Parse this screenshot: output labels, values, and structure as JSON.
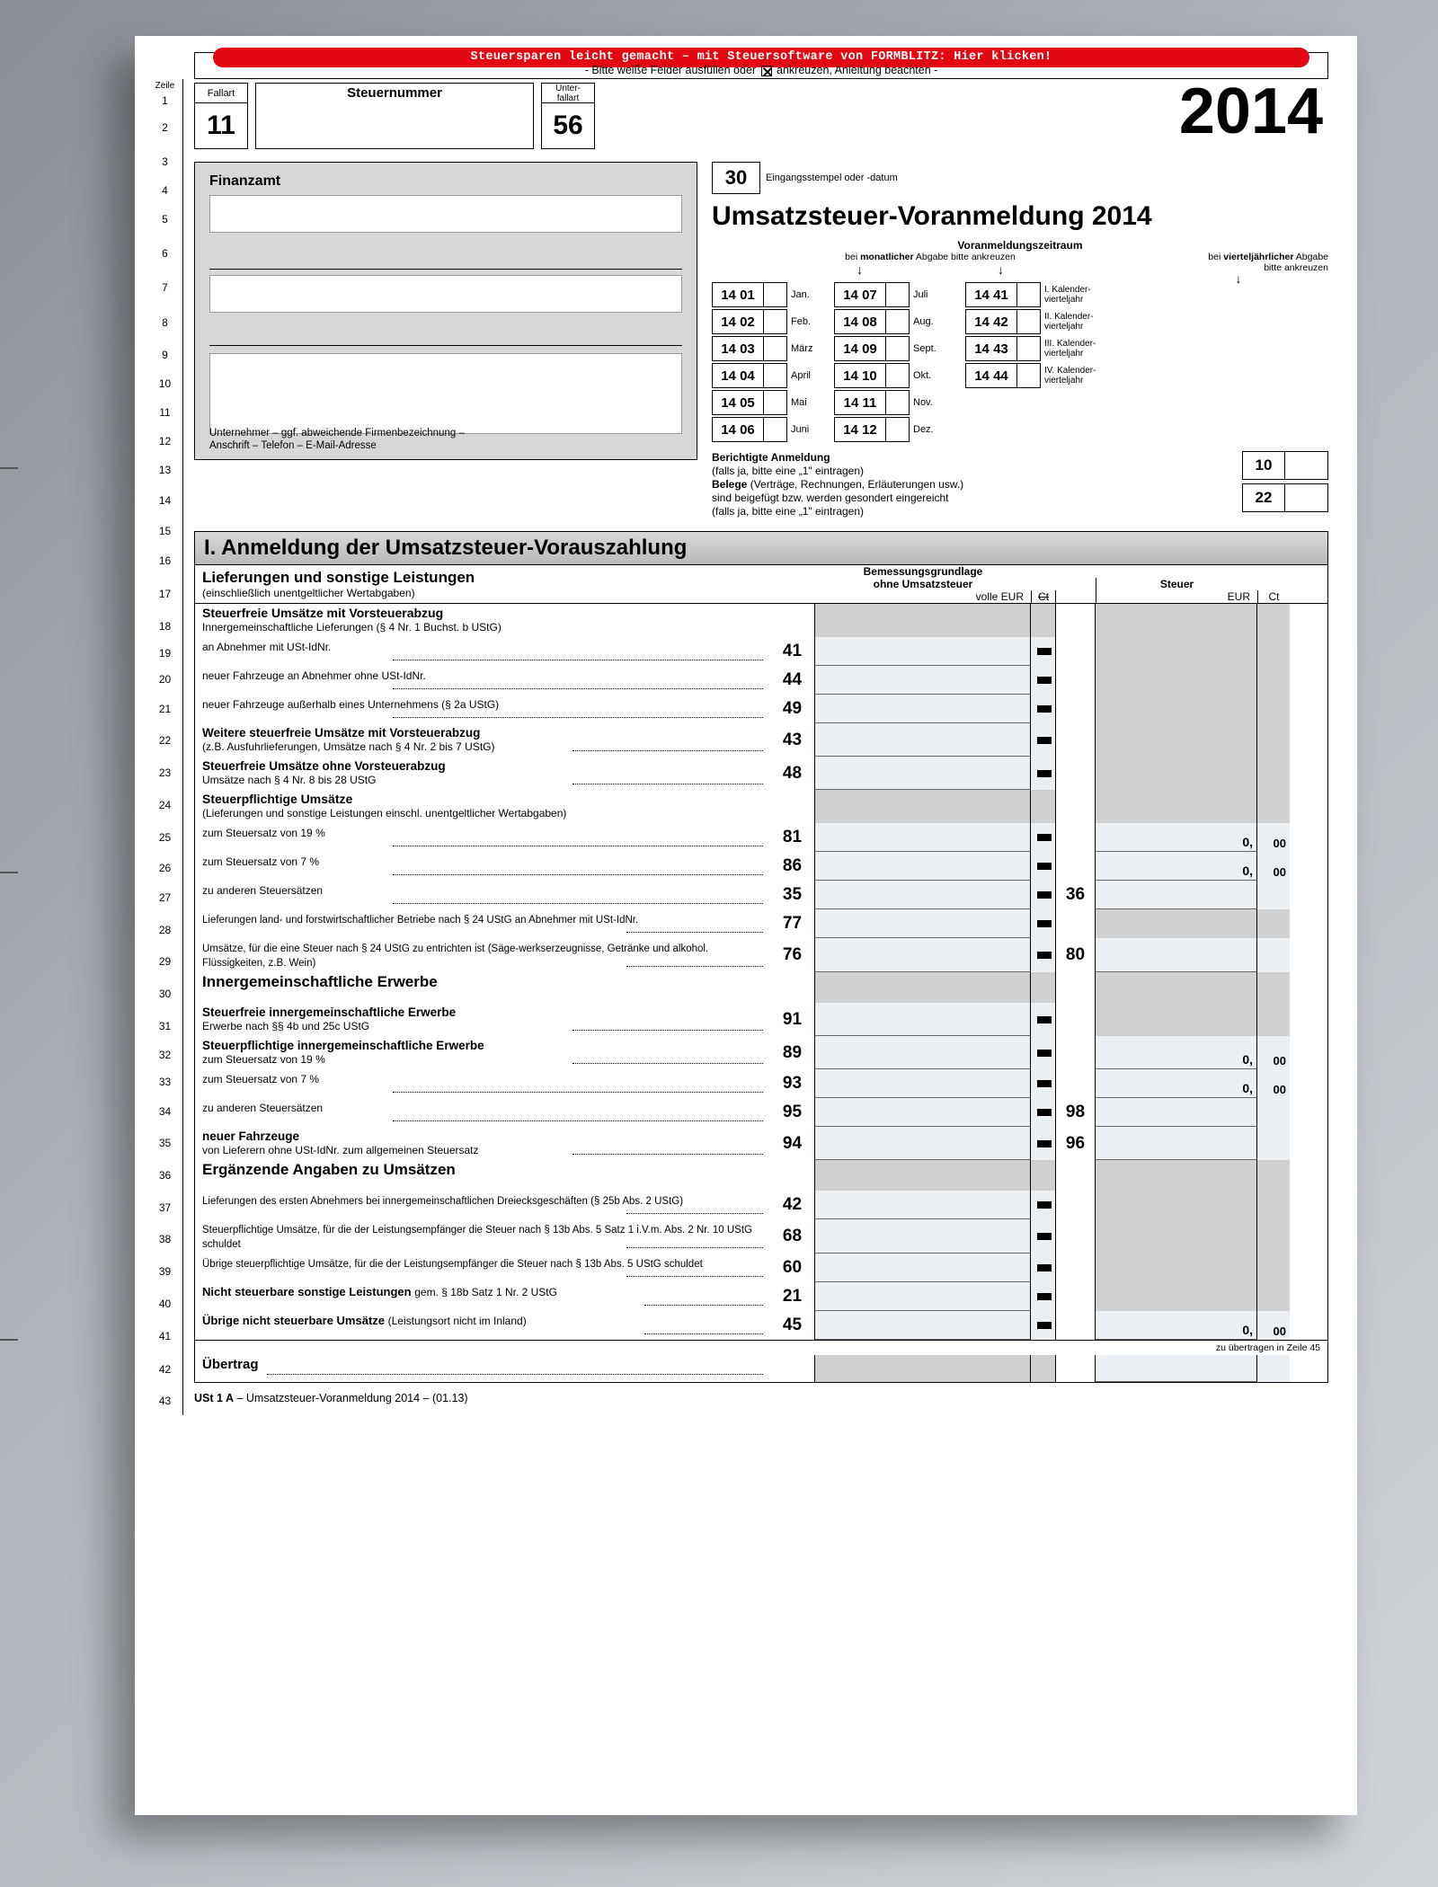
{
  "banner": {
    "red": "Steuersparen leicht gemacht – mit Steuersoftware von FORMBLITZ: Hier klicken!",
    "sub_pre": "- Bitte weiße Felder ausfüllen oder ",
    "sub_post": " ankreuzen, Anleitung beachten -"
  },
  "zeile_label": "Zeile",
  "zeile_nums": [
    "1",
    "2",
    "3",
    "4",
    "5",
    "6",
    "7",
    "8",
    "9",
    "10",
    "11",
    "12",
    "13",
    "14",
    "15",
    "16",
    "17",
    "18",
    "19",
    "20",
    "21",
    "22",
    "23",
    "24",
    "25",
    "26",
    "27",
    "28",
    "29",
    "30",
    "31",
    "32",
    "33",
    "34",
    "35",
    "36",
    "37",
    "38",
    "39",
    "40",
    "41",
    "42",
    "43"
  ],
  "header": {
    "fallart_label": "Fallart",
    "fallart_value": "11",
    "steuernummer_label": "Steuernummer",
    "unterfallart_label": "Unter-\nfallart",
    "unterfallart_value": "56",
    "year": "2014"
  },
  "finanzamt": {
    "title": "Finanzamt",
    "note": "Unternehmer – ggf. abweichende Firmenbezeichnung –\nAnschrift – Telefon – E-Mail-Adresse"
  },
  "stamp": {
    "code": "30",
    "label": "Eingangsstempel oder -datum"
  },
  "form_title": "Umsatzsteuer-Voranmeldung 2014",
  "period": {
    "title": "Voranmeldungszeitraum",
    "sub_monthly": "bei monatlicher Abgabe bitte ankreuzen",
    "sub_quarterly": "bei vierteljährlicher Abgabe\nbitte ankreuzen",
    "months_a": [
      {
        "code": "14 01",
        "lbl": "Jan."
      },
      {
        "code": "14 02",
        "lbl": "Feb."
      },
      {
        "code": "14 03",
        "lbl": "März"
      },
      {
        "code": "14 04",
        "lbl": "April"
      },
      {
        "code": "14 05",
        "lbl": "Mai"
      },
      {
        "code": "14 06",
        "lbl": "Juni"
      }
    ],
    "months_b": [
      {
        "code": "14 07",
        "lbl": "Juli"
      },
      {
        "code": "14 08",
        "lbl": "Aug."
      },
      {
        "code": "14 09",
        "lbl": "Sept."
      },
      {
        "code": "14 10",
        "lbl": "Okt."
      },
      {
        "code": "14 11",
        "lbl": "Nov."
      },
      {
        "code": "14 12",
        "lbl": "Dez."
      }
    ],
    "quarters": [
      {
        "code": "14 41",
        "lbl": "I. Kalender-\nvierteljahr"
      },
      {
        "code": "14 42",
        "lbl": "II. Kalender-\nvierteljahr"
      },
      {
        "code": "14 43",
        "lbl": "III. Kalender-\nvierteljahr"
      },
      {
        "code": "14 44",
        "lbl": "IV. Kalender-\nvierteljahr"
      }
    ]
  },
  "berichtigt": {
    "line1b": "Berichtigte Anmeldung",
    "line1": "(falls ja, bitte eine „1\" eintragen)",
    "line2b": "Belege",
    "line2": " (Verträge, Rechnungen, Erläuterungen usw.)\nsind beigefügt bzw. werden gesondert eingereicht\n(falls ja, bitte eine „1\" eintragen)",
    "code1": "10",
    "code2": "22"
  },
  "section1_title": "I. Anmeldung der Umsatzsteuer-Vorauszahlung",
  "col_headers": {
    "desc_main": "Lieferungen und sonstige Leistungen",
    "desc_sub": "(einschließlich unentgeltlicher Wertabgaben)",
    "base": "Bemessungsgrundlage\nohne Umsatzsteuer",
    "base_unit": "volle EUR",
    "ct": "Ct",
    "tax": "Steuer",
    "tax_unit": "EUR"
  },
  "rows": [
    {
      "kind": "bold",
      "text": "Steuerfreie Umsätze mit Vorsteuerabzug",
      "sub": "Innergemeinschaftliche Lieferungen (§ 4 Nr. 1 Buchst. b UStG)"
    },
    {
      "text": "an Abnehmer mit USt-IdNr.",
      "code": "41",
      "base": true,
      "dash": true,
      "tax_gray": true
    },
    {
      "text": "neuer Fahrzeuge an Abnehmer ohne USt-IdNr.",
      "code": "44",
      "base": true,
      "dash": true,
      "tax_gray": true
    },
    {
      "text": "neuer Fahrzeuge außerhalb eines Unternehmens (§ 2a UStG)",
      "code": "49",
      "base": true,
      "dash": true,
      "tax_gray": true
    },
    {
      "bold": "Weitere steuerfreie Umsätze mit Vorsteuerabzug",
      "text": "(z.B. Ausfuhrlieferungen, Umsätze nach § 4 Nr. 2 bis 7 UStG)",
      "code": "43",
      "base": true,
      "dash": true,
      "tax_gray": true
    },
    {
      "bold": "Steuerfreie Umsätze ohne Vorsteuerabzug",
      "text": "Umsätze nach § 4 Nr. 8 bis 28 UStG",
      "code": "48",
      "base": true,
      "dash": true,
      "tax_gray": true
    },
    {
      "kind": "bold",
      "text": "Steuerpflichtige Umsätze",
      "sub": "(Lieferungen und sonstige Leistungen einschl. unentgeltlicher Wertabgaben)"
    },
    {
      "text": "zum Steuersatz von 19 %",
      "code": "81",
      "base": true,
      "dash": true,
      "tax": true,
      "zero": "0,",
      "ct2": "00"
    },
    {
      "text": "zum Steuersatz von  7 %",
      "code": "86",
      "base": true,
      "dash": true,
      "tax": true,
      "zero": "0,",
      "ct2": "00"
    },
    {
      "text": "zu anderen Steuersätzen",
      "code": "35",
      "base": true,
      "dash": true,
      "tcode": "36",
      "tax": true
    },
    {
      "xsmall": "Lieferungen land- und forstwirtschaftlicher Betriebe nach § 24 UStG an Abnehmer mit USt-IdNr.",
      "code": "77",
      "base": true,
      "dash": true,
      "tax_gray": true
    },
    {
      "xsmall": "Umsätze, für die eine Steuer nach § 24 UStG zu entrichten ist (Säge-werkserzeugnisse, Getränke und alkohol. Flüssigkeiten, z.B. Wein)",
      "code": "76",
      "base": true,
      "dash": true,
      "tcode": "80",
      "tax": true
    },
    {
      "kind": "bigbold",
      "text": "Innergemeinschaftliche Erwerbe"
    },
    {
      "bold": "Steuerfreie innergemeinschaftliche Erwerbe",
      "text": "Erwerbe nach §§ 4b und 25c UStG",
      "code": "91",
      "base": true,
      "dash": true,
      "tax_gray": true
    },
    {
      "bold": "Steuerpflichtige innergemeinschaftliche Erwerbe",
      "text": "zum Steuersatz von 19 %",
      "code": "89",
      "base": true,
      "dash": true,
      "tax": true,
      "zero": "0,",
      "ct2": "00"
    },
    {
      "text": "zum Steuersatz von  7 %",
      "code": "93",
      "base": true,
      "dash": true,
      "tax": true,
      "zero": "0,",
      "ct2": "00"
    },
    {
      "text": "zu anderen Steuersätzen",
      "code": "95",
      "base": true,
      "dash": true,
      "tcode": "98",
      "tax": true
    },
    {
      "bold": "neuer Fahrzeuge",
      "text": "von Lieferern ohne USt-IdNr. zum allgemeinen Steuersatz",
      "code": "94",
      "base": true,
      "dash": true,
      "tcode": "96",
      "tax": true
    },
    {
      "kind": "bigbold",
      "text": "Ergänzende Angaben zu Umsätzen"
    },
    {
      "xsmall": "Lieferungen des ersten Abnehmers bei innergemeinschaftlichen Dreiecksgeschäften (§ 25b Abs. 2 UStG)",
      "code": "42",
      "base": true,
      "dash": true,
      "tax_gray": true
    },
    {
      "xsmall": "Steuerpflichtige Umsätze, für die der Leistungsempfänger die Steuer nach § 13b Abs. 5 Satz 1 i.V.m. Abs. 2 Nr. 10 UStG schuldet",
      "code": "68",
      "base": true,
      "dash": true,
      "tax_gray": true
    },
    {
      "xsmall": "Übrige steuerpflichtige Umsätze, für die der Leistungsempfänger die Steuer nach § 13b Abs. 5 UStG schuldet",
      "code": "60",
      "base": true,
      "dash": true,
      "tax_gray": true
    },
    {
      "bold": "Nicht steuerbare sonstige Leistungen ",
      "text": "gem. § 18b Satz 1 Nr. 2 UStG",
      "code": "21",
      "base": true,
      "dash": true,
      "tax_gray": true,
      "inline": true
    },
    {
      "bold": "Übrige nicht steuerbare Umsätze ",
      "text": "(Leistungsort nicht im Inland)",
      "code": "45",
      "base": true,
      "dash": true,
      "tax": true,
      "zero": "0,",
      "ct2": "00",
      "inline": true
    }
  ],
  "transfer_note": "zu übertragen in Zeile 45",
  "uebertrag": "Übertrag",
  "footer": {
    "code": "USt 1 A",
    "text": " – Umsatzsteuer-Voranmeldung 2014 – (01.13)"
  }
}
